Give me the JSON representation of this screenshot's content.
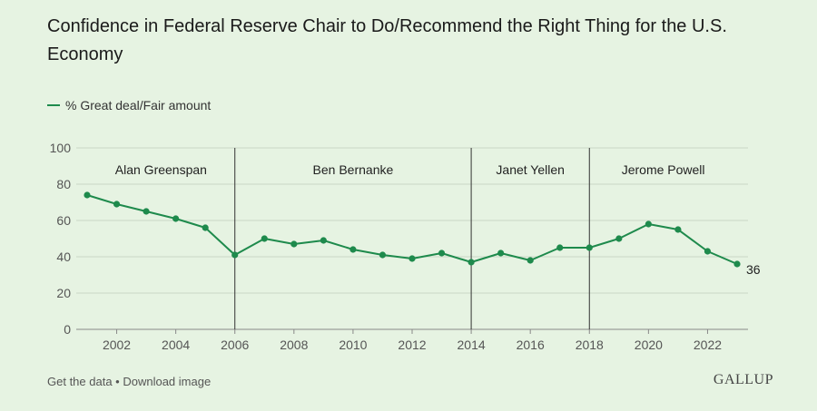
{
  "header": {
    "title": "Confidence in Federal Reserve Chair to Do/Recommend the Right Thing for the U.S. Economy"
  },
  "colors": {
    "series": "#1e8a4c",
    "grid": "#c9d7c5",
    "axis_text": "#555555",
    "divider": "#333333"
  },
  "chart_data": {
    "type": "line",
    "title": "Confidence in Federal Reserve Chair to Do/Recommend the Right Thing for the U.S. Economy",
    "xlabel": "",
    "ylabel": "",
    "ylim": [
      0,
      100
    ],
    "xlim": [
      2001,
      2023
    ],
    "y_ticks": [
      0,
      20,
      40,
      60,
      80,
      100
    ],
    "x_ticks": [
      2002,
      2004,
      2006,
      2008,
      2010,
      2012,
      2014,
      2016,
      2018,
      2020,
      2022
    ],
    "grid": true,
    "legend_position": "top-left",
    "series": [
      {
        "name": "% Great deal/Fair amount",
        "x": [
          2001,
          2002,
          2003,
          2004,
          2005,
          2006,
          2007,
          2008,
          2009,
          2010,
          2011,
          2012,
          2013,
          2014,
          2015,
          2016,
          2017,
          2018,
          2019,
          2020,
          2021,
          2022,
          2023
        ],
        "values": [
          74,
          69,
          65,
          61,
          56,
          41,
          50,
          47,
          49,
          44,
          41,
          39,
          42,
          37,
          42,
          38,
          45,
          45,
          50,
          58,
          55,
          43,
          36
        ]
      }
    ],
    "end_label": "36",
    "dividers": [
      2006,
      2014,
      2018
    ],
    "periods": [
      {
        "label": "Alan Greenspan",
        "start": 2001,
        "end": 2006
      },
      {
        "label": "Ben Bernanke",
        "start": 2006,
        "end": 2014
      },
      {
        "label": "Janet Yellen",
        "start": 2014,
        "end": 2018
      },
      {
        "label": "Jerome Powell",
        "start": 2018,
        "end": 2023
      }
    ]
  },
  "footer": {
    "get_data": "Get the data",
    "separator": " • ",
    "download": "Download image",
    "brand": "GALLUP"
  }
}
